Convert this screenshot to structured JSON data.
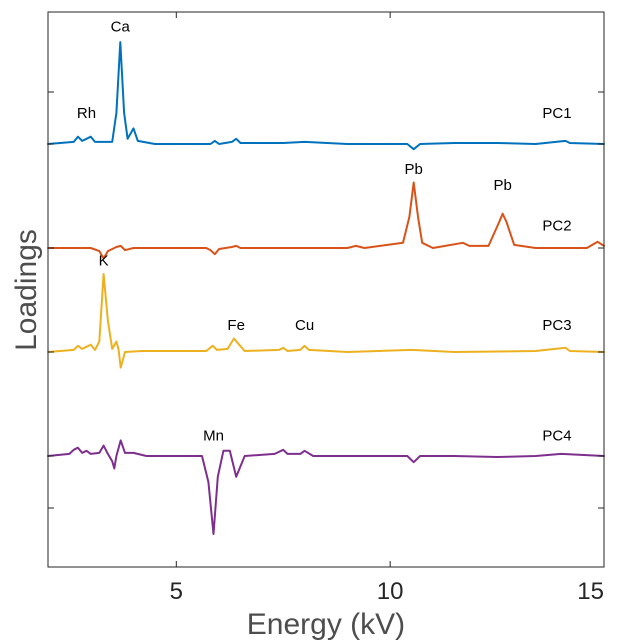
{
  "chart_data": {
    "type": "line",
    "title": "",
    "xlabel": "Energy (kV)",
    "ylabel": "Loadings",
    "xlim": [
      2,
      15
    ],
    "xticks": [
      5,
      10,
      15
    ],
    "xtick_labels": [
      "5",
      "10",
      "15"
    ],
    "grid": false,
    "legend": "none",
    "y_ticks_shown": "unlabeled",
    "series": [
      {
        "name": "PC1",
        "color": "#0072BD",
        "baseline": 1.0,
        "points": [
          [
            2.0,
            0.0
          ],
          [
            2.6,
            0.02
          ],
          [
            2.7,
            0.07
          ],
          [
            2.8,
            0.03
          ],
          [
            2.9,
            0.05
          ],
          [
            3.0,
            0.07
          ],
          [
            3.1,
            0.02
          ],
          [
            3.5,
            0.02
          ],
          [
            3.6,
            0.3
          ],
          [
            3.69,
            0.98
          ],
          [
            3.78,
            0.3
          ],
          [
            3.86,
            0.05
          ],
          [
            4.0,
            0.15
          ],
          [
            4.1,
            0.03
          ],
          [
            4.5,
            0.0
          ],
          [
            5.8,
            0.0
          ],
          [
            5.9,
            0.03
          ],
          [
            6.0,
            0.0
          ],
          [
            6.3,
            0.02
          ],
          [
            6.4,
            0.05
          ],
          [
            6.5,
            0.01
          ],
          [
            7.5,
            0.01
          ],
          [
            8.0,
            0.02
          ],
          [
            9.0,
            0.0
          ],
          [
            10.4,
            0.0
          ],
          [
            10.55,
            -0.05
          ],
          [
            10.7,
            0.0
          ],
          [
            11.5,
            0.01
          ],
          [
            12.5,
            0.01
          ],
          [
            13.4,
            0.0
          ],
          [
            14.1,
            0.03
          ],
          [
            14.2,
            0.01
          ],
          [
            15.0,
            0.0
          ]
        ]
      },
      {
        "name": "PC2",
        "color": "#D95319",
        "baseline": 0.0,
        "points": [
          [
            2.0,
            0.0
          ],
          [
            3.0,
            0.0
          ],
          [
            3.2,
            -0.03
          ],
          [
            3.3,
            -0.1
          ],
          [
            3.4,
            -0.03
          ],
          [
            3.6,
            0.01
          ],
          [
            3.7,
            0.02
          ],
          [
            3.8,
            -0.02
          ],
          [
            4.0,
            0.0
          ],
          [
            5.7,
            0.0
          ],
          [
            5.8,
            -0.02
          ],
          [
            5.9,
            -0.06
          ],
          [
            6.0,
            -0.01
          ],
          [
            6.3,
            0.01
          ],
          [
            6.4,
            0.02
          ],
          [
            6.5,
            0.0
          ],
          [
            9.0,
            0.0
          ],
          [
            9.2,
            0.02
          ],
          [
            9.4,
            0.0
          ],
          [
            10.3,
            0.05
          ],
          [
            10.45,
            0.3
          ],
          [
            10.55,
            0.63
          ],
          [
            10.65,
            0.3
          ],
          [
            10.75,
            0.05
          ],
          [
            11.0,
            0.0
          ],
          [
            11.7,
            0.05
          ],
          [
            11.85,
            0.02
          ],
          [
            12.3,
            0.02
          ],
          [
            12.55,
            0.25
          ],
          [
            12.63,
            0.33
          ],
          [
            12.72,
            0.25
          ],
          [
            12.9,
            0.03
          ],
          [
            13.4,
            0.0
          ],
          [
            14.6,
            0.0
          ],
          [
            14.85,
            0.06
          ],
          [
            15.0,
            0.02
          ]
        ]
      },
      {
        "name": "PC3",
        "color": "#EDB120",
        "baseline": -1.0,
        "points": [
          [
            2.0,
            0.0
          ],
          [
            2.6,
            0.02
          ],
          [
            2.7,
            0.06
          ],
          [
            2.8,
            0.03
          ],
          [
            2.9,
            0.05
          ],
          [
            3.0,
            0.07
          ],
          [
            3.1,
            0.02
          ],
          [
            3.2,
            0.1
          ],
          [
            3.3,
            0.75
          ],
          [
            3.4,
            0.3
          ],
          [
            3.5,
            0.03
          ],
          [
            3.6,
            0.1
          ],
          [
            3.65,
            0.02
          ],
          [
            3.7,
            -0.15
          ],
          [
            3.8,
            0.0
          ],
          [
            4.2,
            0.01
          ],
          [
            5.7,
            0.01
          ],
          [
            5.85,
            0.06
          ],
          [
            5.95,
            0.02
          ],
          [
            6.2,
            0.03
          ],
          [
            6.35,
            0.13
          ],
          [
            6.45,
            0.08
          ],
          [
            6.6,
            0.01
          ],
          [
            7.4,
            0.02
          ],
          [
            7.5,
            0.04
          ],
          [
            7.6,
            0.01
          ],
          [
            7.9,
            0.02
          ],
          [
            8.0,
            0.06
          ],
          [
            8.1,
            0.02
          ],
          [
            9.0,
            0.0
          ],
          [
            10.5,
            0.02
          ],
          [
            11.5,
            0.0
          ],
          [
            13.4,
            0.01
          ],
          [
            14.1,
            0.04
          ],
          [
            14.2,
            0.01
          ],
          [
            15.0,
            0.0
          ]
        ]
      },
      {
        "name": "PC4",
        "color": "#7E2F8E",
        "baseline": -2.0,
        "points": [
          [
            2.0,
            0.0
          ],
          [
            2.5,
            0.02
          ],
          [
            2.6,
            0.06
          ],
          [
            2.7,
            0.08
          ],
          [
            2.8,
            0.03
          ],
          [
            2.9,
            0.05
          ],
          [
            3.0,
            0.02
          ],
          [
            3.2,
            0.03
          ],
          [
            3.3,
            0.1
          ],
          [
            3.4,
            0.02
          ],
          [
            3.5,
            -0.05
          ],
          [
            3.55,
            -0.12
          ],
          [
            3.6,
            0.0
          ],
          [
            3.7,
            0.15
          ],
          [
            3.8,
            0.03
          ],
          [
            4.0,
            0.03
          ],
          [
            4.3,
            0.0
          ],
          [
            5.6,
            0.0
          ],
          [
            5.75,
            -0.25
          ],
          [
            5.87,
            -0.75
          ],
          [
            5.97,
            -0.2
          ],
          [
            6.1,
            0.05
          ],
          [
            6.25,
            0.05
          ],
          [
            6.4,
            -0.2
          ],
          [
            6.6,
            0.0
          ],
          [
            7.3,
            0.02
          ],
          [
            7.5,
            0.06
          ],
          [
            7.6,
            0.02
          ],
          [
            7.9,
            0.02
          ],
          [
            8.0,
            0.05
          ],
          [
            8.2,
            0.0
          ],
          [
            10.4,
            0.0
          ],
          [
            10.55,
            -0.06
          ],
          [
            10.7,
            0.0
          ],
          [
            11.5,
            0.0
          ],
          [
            12.5,
            -0.01
          ],
          [
            13.4,
            0.0
          ],
          [
            14.0,
            0.02
          ],
          [
            15.0,
            0.0
          ]
        ]
      }
    ],
    "annotations": [
      {
        "text": "Rh",
        "series": 0,
        "x": 2.9,
        "y": 0.25
      },
      {
        "text": "Ca",
        "series": 0,
        "x": 3.69,
        "y": 1.08
      },
      {
        "text": "PC1",
        "series": 0,
        "x": 13.9,
        "y": 0.25
      },
      {
        "text": "Pb",
        "series": 1,
        "x": 10.55,
        "y": 0.71
      },
      {
        "text": "Pb",
        "series": 1,
        "x": 12.63,
        "y": 0.56
      },
      {
        "text": "PC2",
        "series": 1,
        "x": 13.9,
        "y": 0.17
      },
      {
        "text": "K",
        "series": 2,
        "x": 3.3,
        "y": 0.83
      },
      {
        "text": "Fe",
        "series": 2,
        "x": 6.4,
        "y": 0.21
      },
      {
        "text": "Cu",
        "series": 2,
        "x": 8.0,
        "y": 0.21
      },
      {
        "text": "PC3",
        "series": 2,
        "x": 13.9,
        "y": 0.21
      },
      {
        "text": "Mn",
        "series": 3,
        "x": 5.87,
        "y": 0.15
      },
      {
        "text": "PC4",
        "series": 3,
        "x": 13.9,
        "y": 0.15
      }
    ]
  }
}
